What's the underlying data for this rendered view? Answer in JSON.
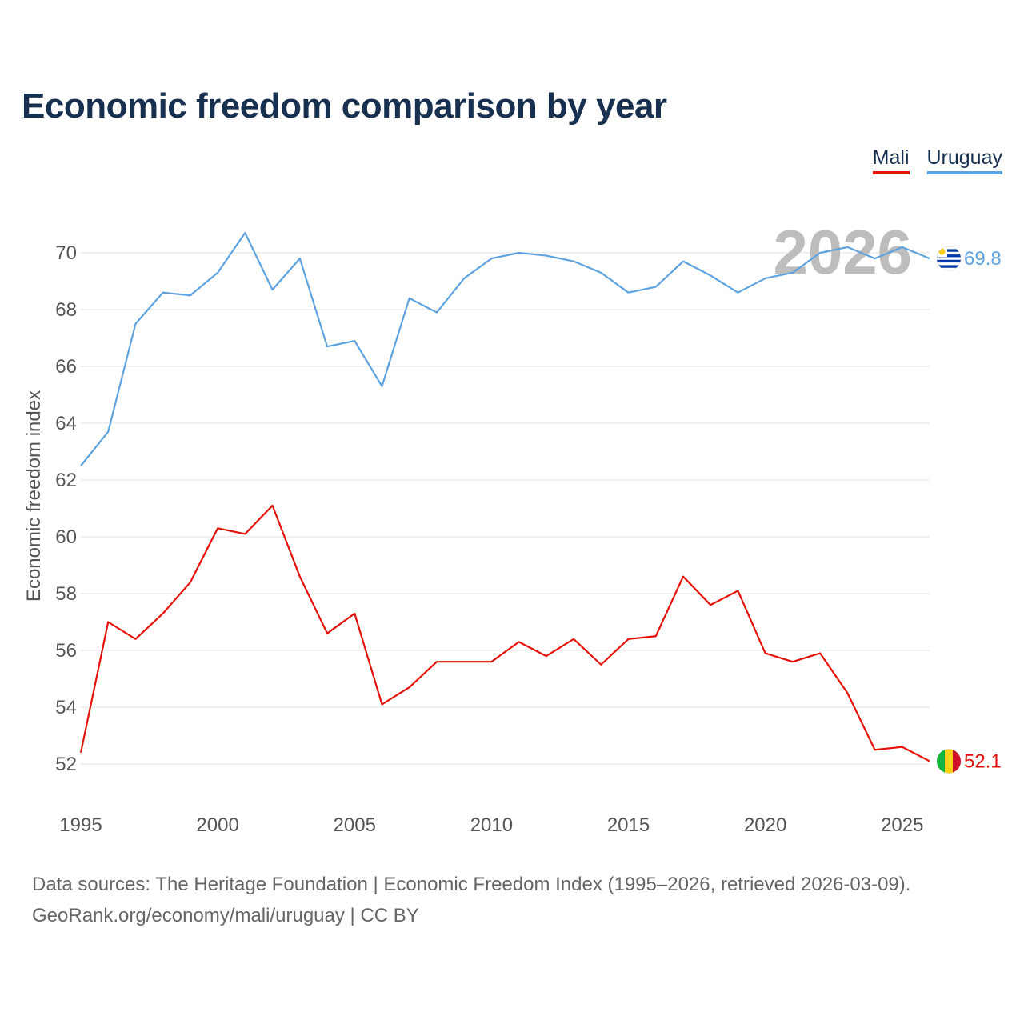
{
  "title": "Economic freedom comparison by year",
  "legend": {
    "mali": "Mali",
    "uruguay": "Uruguay"
  },
  "watermark_year": "2026",
  "source_line1": "Data sources: The Heritage Foundation | Economic Freedom Index (1995–2026, retrieved 2026-03-09).",
  "source_line2": "GeoRank.org/economy/mali/uruguay | CC BY",
  "colors": {
    "mali": "#e3120b",
    "uruguay": "#5ea3df",
    "title": "#17304f",
    "axis_text": "#555555",
    "grid": "#e6e6e6"
  },
  "chart_data": {
    "type": "line",
    "title": "Economic freedom comparison by year",
    "xlabel": "",
    "ylabel": "Economic freedom index",
    "xlim": [
      1995,
      2026
    ],
    "ylim": [
      51,
      72
    ],
    "x_ticks": [
      1995,
      2000,
      2005,
      2010,
      2015,
      2020,
      2025
    ],
    "y_ticks": [
      52,
      54,
      56,
      58,
      60,
      62,
      64,
      66,
      68,
      70
    ],
    "x": [
      1995,
      1996,
      1997,
      1998,
      1999,
      2000,
      2001,
      2002,
      2003,
      2004,
      2005,
      2006,
      2007,
      2008,
      2009,
      2010,
      2011,
      2012,
      2013,
      2014,
      2015,
      2016,
      2017,
      2018,
      2019,
      2020,
      2021,
      2022,
      2023,
      2024,
      2025,
      2026
    ],
    "series": [
      {
        "name": "Mali",
        "color": "#e3120b",
        "end_label": "52.1",
        "icon": "mali-flag-icon",
        "values": [
          52.4,
          57.0,
          56.4,
          57.3,
          58.4,
          60.3,
          60.1,
          61.1,
          58.6,
          56.6,
          57.3,
          54.1,
          54.7,
          55.6,
          55.6,
          55.6,
          56.3,
          55.8,
          56.4,
          55.5,
          56.4,
          56.5,
          58.6,
          57.6,
          58.1,
          55.9,
          55.6,
          55.9,
          54.5,
          52.5,
          52.6,
          52.1
        ]
      },
      {
        "name": "Uruguay",
        "color": "#5ea3df",
        "end_label": "69.8",
        "icon": "uruguay-flag-icon",
        "values": [
          62.5,
          63.7,
          67.5,
          68.6,
          68.5,
          69.3,
          70.7,
          68.7,
          69.8,
          66.7,
          66.9,
          65.3,
          68.4,
          67.9,
          69.1,
          69.8,
          70.0,
          69.9,
          69.7,
          69.3,
          68.6,
          68.8,
          69.7,
          69.2,
          68.6,
          69.1,
          69.3,
          70.0,
          70.2,
          69.8,
          70.2,
          69.8
        ]
      }
    ],
    "legend_position": "top-right",
    "grid": true
  }
}
